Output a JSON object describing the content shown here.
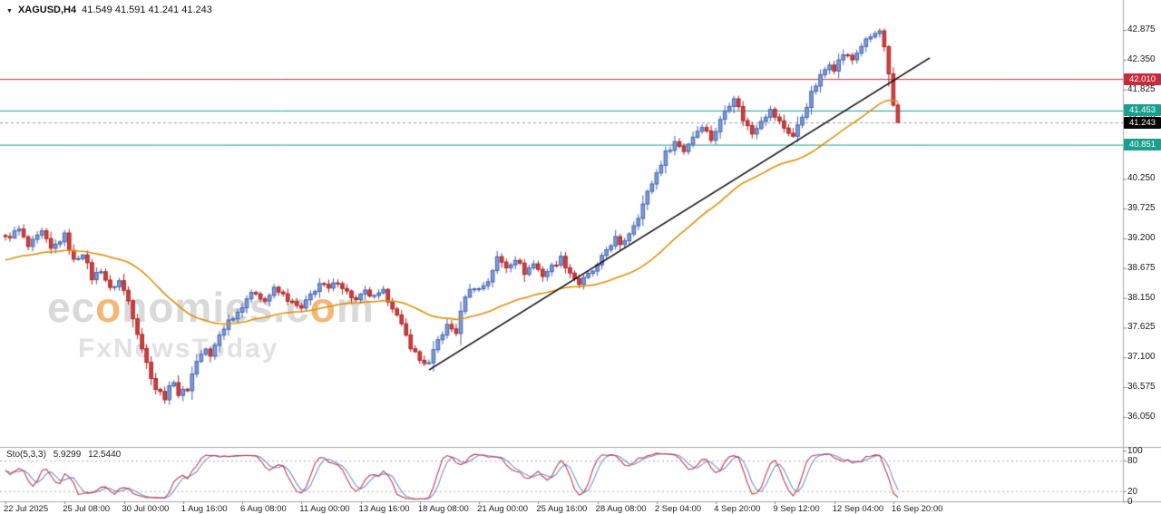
{
  "symbol_bar": {
    "symbol": "XAGUSD,H4",
    "ohlc": "41.549 41.591 41.241 41.243"
  },
  "watermark": {
    "brand_parts": [
      {
        "t": "ec"
      },
      {
        "t": "o",
        "accent": true
      },
      {
        "t": "nomies"
      },
      {
        "t": ".c"
      },
      {
        "t": "o",
        "accent": true
      },
      {
        "t": "m"
      }
    ],
    "line2": "FxNewsToday",
    "accent_color": "#f3b878"
  },
  "chart_data": {
    "type": "candlestick",
    "symbol": "XAGUSD",
    "timeframe": "H4",
    "title": "XAGUSD,H4 41.549 41.591 41.241 41.243",
    "last_candle": {
      "open": 41.549,
      "high": 41.591,
      "low": 41.241,
      "close": 41.243
    },
    "candle_count": 197,
    "price_path": [
      [
        0,
        39.2
      ],
      [
        3,
        39.35
      ],
      [
        5,
        39.05
      ],
      [
        8,
        39.3
      ],
      [
        10,
        39.0
      ],
      [
        13,
        39.25
      ],
      [
        15,
        38.8
      ],
      [
        17,
        38.95
      ],
      [
        19,
        38.5
      ],
      [
        21,
        38.65
      ],
      [
        23,
        38.3
      ],
      [
        25,
        38.45
      ],
      [
        27,
        38.1
      ],
      [
        29,
        37.55
      ],
      [
        31,
        37.0
      ],
      [
        33,
        36.55
      ],
      [
        35,
        36.4
      ],
      [
        37,
        36.7
      ],
      [
        38,
        36.45
      ],
      [
        40,
        36.55
      ],
      [
        42,
        37.05
      ],
      [
        44,
        37.25
      ],
      [
        45,
        37.1
      ],
      [
        47,
        37.5
      ],
      [
        49,
        37.75
      ],
      [
        51,
        37.9
      ],
      [
        53,
        38.15
      ],
      [
        55,
        38.25
      ],
      [
        57,
        38.1
      ],
      [
        59,
        38.3
      ],
      [
        61,
        38.2
      ],
      [
        63,
        38.05
      ],
      [
        65,
        37.95
      ],
      [
        67,
        38.2
      ],
      [
        69,
        38.4
      ],
      [
        71,
        38.3
      ],
      [
        73,
        38.45
      ],
      [
        75,
        38.25
      ],
      [
        77,
        38.1
      ],
      [
        79,
        38.25
      ],
      [
        81,
        38.15
      ],
      [
        83,
        38.25
      ],
      [
        85,
        38.0
      ],
      [
        87,
        37.65
      ],
      [
        89,
        37.3
      ],
      [
        91,
        37.05
      ],
      [
        93,
        36.98
      ],
      [
        95,
        37.4
      ],
      [
        97,
        37.65
      ],
      [
        99,
        37.55
      ],
      [
        101,
        38.2
      ],
      [
        103,
        38.35
      ],
      [
        104,
        38.3
      ],
      [
        106,
        38.45
      ],
      [
        108,
        38.85
      ],
      [
        110,
        38.7
      ],
      [
        112,
        38.85
      ],
      [
        114,
        38.6
      ],
      [
        116,
        38.75
      ],
      [
        118,
        38.55
      ],
      [
        120,
        38.7
      ],
      [
        122,
        38.85
      ],
      [
        124,
        38.6
      ],
      [
        126,
        38.4
      ],
      [
        128,
        38.55
      ],
      [
        130,
        38.7
      ],
      [
        132,
        39.0
      ],
      [
        134,
        39.2
      ],
      [
        135,
        39.05
      ],
      [
        137,
        39.3
      ],
      [
        139,
        39.6
      ],
      [
        141,
        40.0
      ],
      [
        143,
        40.35
      ],
      [
        145,
        40.7
      ],
      [
        147,
        40.9
      ],
      [
        149,
        40.75
      ],
      [
        151,
        41.0
      ],
      [
        153,
        41.2
      ],
      [
        155,
        40.95
      ],
      [
        156,
        41.1
      ],
      [
        158,
        41.45
      ],
      [
        160,
        41.7
      ],
      [
        162,
        41.3
      ],
      [
        164,
        41.05
      ],
      [
        166,
        41.3
      ],
      [
        168,
        41.45
      ],
      [
        169,
        41.35
      ],
      [
        171,
        41.15
      ],
      [
        173,
        41.0
      ],
      [
        175,
        41.35
      ],
      [
        177,
        41.75
      ],
      [
        179,
        42.05
      ],
      [
        181,
        42.3
      ],
      [
        182,
        42.2
      ],
      [
        184,
        42.45
      ],
      [
        186,
        42.35
      ],
      [
        188,
        42.6
      ],
      [
        190,
        42.75
      ],
      [
        192,
        42.85
      ],
      [
        193,
        42.55
      ],
      [
        194,
        42.1
      ],
      [
        195,
        41.65
      ],
      [
        196,
        41.243
      ]
    ],
    "y_axis": {
      "ticks": [
        42.875,
        42.35,
        41.825,
        41.3,
        40.775,
        40.25,
        39.725,
        39.2,
        38.675,
        38.15,
        37.625,
        37.1,
        36.575,
        36.05
      ]
    },
    "x_axis": {
      "labels": [
        {
          "idx": 0,
          "t": "22 Jul 2025"
        },
        {
          "idx": 13,
          "t": "25 Jul 08:00"
        },
        {
          "idx": 26,
          "t": "30 Jul 00:00"
        },
        {
          "idx": 39,
          "t": "1 Aug 16:00"
        },
        {
          "idx": 52,
          "t": "6 Aug 08:00"
        },
        {
          "idx": 65,
          "t": "11 Aug 00:00"
        },
        {
          "idx": 78,
          "t": "13 Aug 16:00"
        },
        {
          "idx": 91,
          "t": "18 Aug 08:00"
        },
        {
          "idx": 104,
          "t": "21 Aug 00:00"
        },
        {
          "idx": 117,
          "t": "25 Aug 16:00"
        },
        {
          "idx": 130,
          "t": "28 Aug 08:00"
        },
        {
          "idx": 143,
          "t": "2 Sep 04:00"
        },
        {
          "idx": 156,
          "t": "4 Sep 20:00"
        },
        {
          "idx": 169,
          "t": "9 Sep 12:00"
        },
        {
          "idx": 182,
          "t": "12 Sep 04:00"
        },
        {
          "idx": 195,
          "t": "16 Sep 20:00"
        }
      ]
    },
    "levels": [
      {
        "price": 42.01,
        "label": "42.010",
        "color": "#c62a3c",
        "role": "resistance"
      },
      {
        "price": 41.453,
        "label": "41.453",
        "color": "#18a08c",
        "role": "support"
      },
      {
        "price": 40.851,
        "label": "40.851",
        "color": "#18a08c",
        "role": "support"
      }
    ],
    "current_price": {
      "price": 41.243,
      "label": "41.243",
      "color": "#000000"
    },
    "trendline": {
      "from_idx": 93,
      "from_price": 36.88,
      "to_idx": 203,
      "to_price": 42.38,
      "color": "#000000"
    },
    "ma": {
      "period": 45,
      "seed": 38.8,
      "color": "#e08f0e"
    },
    "stochastic": {
      "label": "Sto(5,3,3)",
      "main_value": "5.9299",
      "signal_value": "12.5440",
      "params": [
        5,
        3,
        3
      ],
      "axis_labels": [
        {
          "v": 100,
          "t": "100"
        },
        {
          "v": 80,
          "t": "80"
        },
        {
          "v": 20,
          "t": "20"
        },
        {
          "v": 0,
          "t": "0"
        }
      ],
      "dashed_levels": [
        80,
        20
      ],
      "main_color": "#c23b4b",
      "signal_color": "#6b92c9"
    },
    "colors": {
      "up_fill": "#7e9bd8",
      "up_stroke": "#3f62b0",
      "down_fill": "#d24040",
      "down_stroke": "#a82222",
      "axis_line": "#aaaaaa",
      "grid_dash": "#aaaaaa"
    }
  }
}
